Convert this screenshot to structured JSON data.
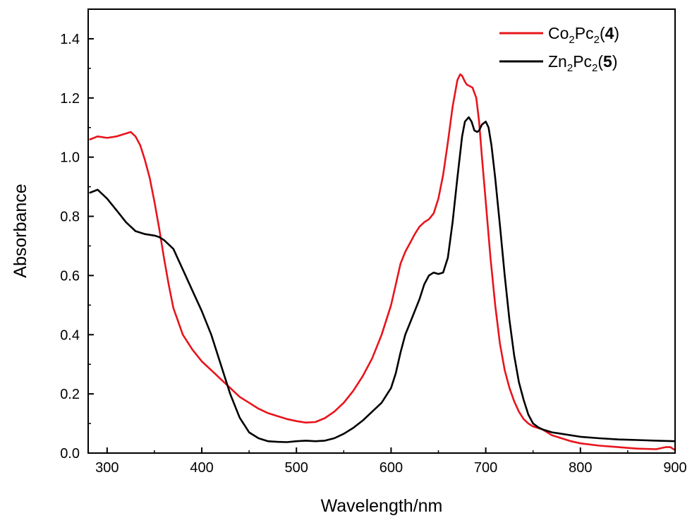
{
  "chart_data": {
    "type": "line",
    "xlabel": "Wavelength/nm",
    "ylabel": "Absorbance",
    "xlim": [
      280,
      900
    ],
    "ylim": [
      0.0,
      1.5
    ],
    "xticks": [
      300,
      400,
      500,
      600,
      700,
      800,
      900
    ],
    "yticks": [
      0.0,
      0.2,
      0.4,
      0.6,
      0.8,
      1.0,
      1.2,
      1.4
    ],
    "xtick_labels": [
      "300",
      "400",
      "500",
      "600",
      "700",
      "800",
      "900"
    ],
    "ytick_labels": [
      "0.0",
      "0.2",
      "0.4",
      "0.6",
      "0.8",
      "1.0",
      "1.2",
      "1.4"
    ],
    "grid": false,
    "legend_position": "top-right",
    "series": [
      {
        "name": "Co₂Pc₂(4)",
        "legend": {
          "base1": "Co",
          "sub1": "2",
          "base2": "Pc",
          "sub2": "2",
          "open": "(",
          "num": "4",
          "close": ")"
        },
        "color": "#e8141c",
        "x": [
          282,
          290,
          300,
          310,
          320,
          325,
          330,
          335,
          340,
          345,
          350,
          355,
          360,
          365,
          370,
          380,
          390,
          400,
          410,
          420,
          430,
          440,
          450,
          460,
          470,
          480,
          490,
          500,
          510,
          520,
          530,
          540,
          550,
          560,
          570,
          580,
          590,
          600,
          605,
          610,
          615,
          620,
          625,
          630,
          635,
          640,
          645,
          650,
          655,
          660,
          665,
          670,
          673,
          675,
          678,
          680,
          683,
          686,
          690,
          693,
          696,
          700,
          705,
          710,
          715,
          720,
          725,
          730,
          735,
          740,
          745,
          750,
          755,
          760,
          770,
          780,
          790,
          800,
          820,
          840,
          860,
          880,
          890,
          895,
          900
        ],
        "y": [
          1.06,
          1.07,
          1.065,
          1.07,
          1.08,
          1.085,
          1.07,
          1.04,
          0.99,
          0.93,
          0.85,
          0.76,
          0.66,
          0.57,
          0.49,
          0.4,
          0.35,
          0.31,
          0.28,
          0.25,
          0.22,
          0.19,
          0.17,
          0.15,
          0.135,
          0.125,
          0.115,
          0.108,
          0.103,
          0.105,
          0.118,
          0.14,
          0.17,
          0.21,
          0.26,
          0.32,
          0.4,
          0.5,
          0.57,
          0.64,
          0.68,
          0.71,
          0.74,
          0.765,
          0.78,
          0.79,
          0.81,
          0.86,
          0.94,
          1.05,
          1.17,
          1.26,
          1.28,
          1.275,
          1.255,
          1.245,
          1.24,
          1.235,
          1.2,
          1.12,
          1.0,
          0.85,
          0.66,
          0.5,
          0.37,
          0.28,
          0.22,
          0.175,
          0.14,
          0.115,
          0.1,
          0.09,
          0.085,
          0.08,
          0.06,
          0.05,
          0.04,
          0.033,
          0.025,
          0.02,
          0.015,
          0.013,
          0.02,
          0.02,
          0.01
        ]
      },
      {
        "name": "Zn₂Pc₂(5)",
        "legend": {
          "base1": "Zn",
          "sub1": "2",
          "base2": "Pc",
          "sub2": "2",
          "open": "(",
          "num": "5",
          "close": ")"
        },
        "color": "#000000",
        "x": [
          282,
          290,
          300,
          310,
          320,
          330,
          340,
          350,
          355,
          360,
          370,
          380,
          390,
          400,
          410,
          420,
          430,
          440,
          450,
          460,
          470,
          480,
          490,
          500,
          510,
          520,
          530,
          540,
          550,
          560,
          570,
          580,
          590,
          600,
          605,
          610,
          615,
          620,
          625,
          630,
          635,
          640,
          645,
          650,
          655,
          660,
          665,
          670,
          675,
          678,
          682,
          685,
          688,
          691,
          693,
          696,
          700,
          703,
          706,
          710,
          715,
          720,
          725,
          730,
          735,
          740,
          745,
          750,
          755,
          760,
          770,
          780,
          800,
          820,
          840,
          860,
          880,
          900
        ],
        "y": [
          0.88,
          0.89,
          0.86,
          0.82,
          0.78,
          0.75,
          0.74,
          0.735,
          0.73,
          0.72,
          0.69,
          0.62,
          0.55,
          0.48,
          0.4,
          0.3,
          0.2,
          0.12,
          0.07,
          0.05,
          0.04,
          0.038,
          0.037,
          0.04,
          0.042,
          0.04,
          0.042,
          0.05,
          0.065,
          0.085,
          0.11,
          0.14,
          0.17,
          0.22,
          0.27,
          0.34,
          0.4,
          0.44,
          0.48,
          0.52,
          0.57,
          0.6,
          0.61,
          0.605,
          0.61,
          0.66,
          0.78,
          0.93,
          1.07,
          1.12,
          1.135,
          1.12,
          1.09,
          1.085,
          1.09,
          1.11,
          1.12,
          1.1,
          1.04,
          0.93,
          0.77,
          0.6,
          0.45,
          0.33,
          0.24,
          0.18,
          0.13,
          0.1,
          0.088,
          0.08,
          0.07,
          0.065,
          0.055,
          0.05,
          0.046,
          0.044,
          0.042,
          0.04
        ]
      }
    ]
  }
}
